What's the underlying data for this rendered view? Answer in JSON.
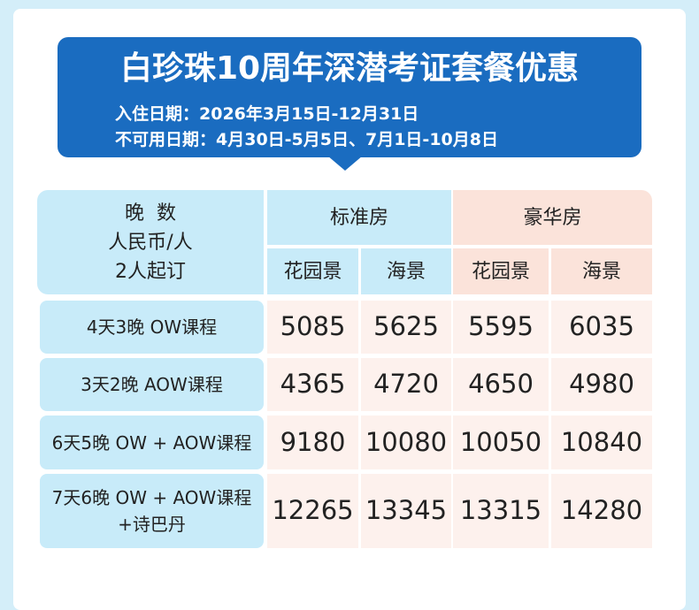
{
  "title": "白珍珠10周年深潜考证套餐优惠",
  "dates": [
    "入住日期：2026年3月15日-12月31日",
    "不可用日期：4月30日-5月5日、7月1日-10月8日"
  ],
  "table": {
    "corner": [
      "晚  数",
      "人民币/人",
      "2人起订"
    ],
    "groups": [
      {
        "name": "标准房",
        "columns": [
          "花园景",
          "海景"
        ]
      },
      {
        "name": "豪华房",
        "columns": [
          "花园景",
          "海景"
        ]
      }
    ],
    "rows": [
      {
        "label": [
          "4天3晚 OW课程"
        ],
        "values": [
          5085,
          5625,
          5595,
          6035
        ]
      },
      {
        "label": [
          "3天2晚 AOW课程"
        ],
        "values": [
          4365,
          4720,
          4650,
          4980
        ]
      },
      {
        "label": [
          "6天5晚 OW + AOW课程"
        ],
        "values": [
          9180,
          10080,
          10050,
          10840
        ]
      },
      {
        "label": [
          "7天6晚 OW + AOW课程",
          "+诗巴丹"
        ],
        "values": [
          12265,
          13345,
          13315,
          14280
        ]
      }
    ]
  }
}
